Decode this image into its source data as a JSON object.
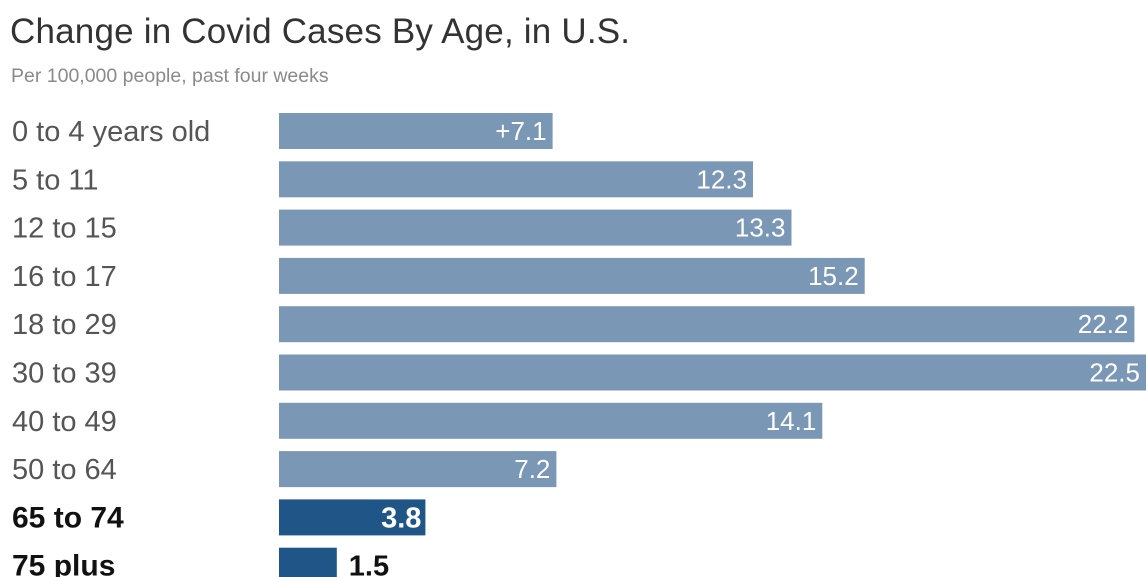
{
  "chart_data": {
    "type": "bar",
    "orientation": "horizontal",
    "title": "Change in Covid Cases By Age, in U.S.",
    "subtitle": "Per 100,000 people, past four weeks",
    "categories": [
      "0 to 4 years old",
      "5 to 11",
      "12 to 15",
      "16 to 17",
      "18 to 29",
      "30 to 39",
      "40 to 49",
      "50 to 64",
      "65 to 74",
      "75 plus"
    ],
    "values": [
      7.1,
      12.3,
      13.3,
      15.2,
      22.2,
      22.5,
      14.1,
      7.2,
      3.8,
      1.5
    ],
    "value_labels": [
      "+7.1",
      "12.3",
      "13.3",
      "15.2",
      "22.2",
      "22.5",
      "14.1",
      "7.2",
      "3.8",
      "1.5"
    ],
    "highlighted": [
      false,
      false,
      false,
      false,
      false,
      false,
      false,
      false,
      true,
      true
    ],
    "xlim": [
      0,
      22.5
    ],
    "grid": false,
    "colors": {
      "bar": "#7b97b6",
      "highlight_bar": "#1f5587",
      "label": "#555555",
      "highlight_label": "#111111",
      "value_on_bar": "#ffffff",
      "title": "#333333",
      "subtitle": "#8a8a8a"
    }
  }
}
